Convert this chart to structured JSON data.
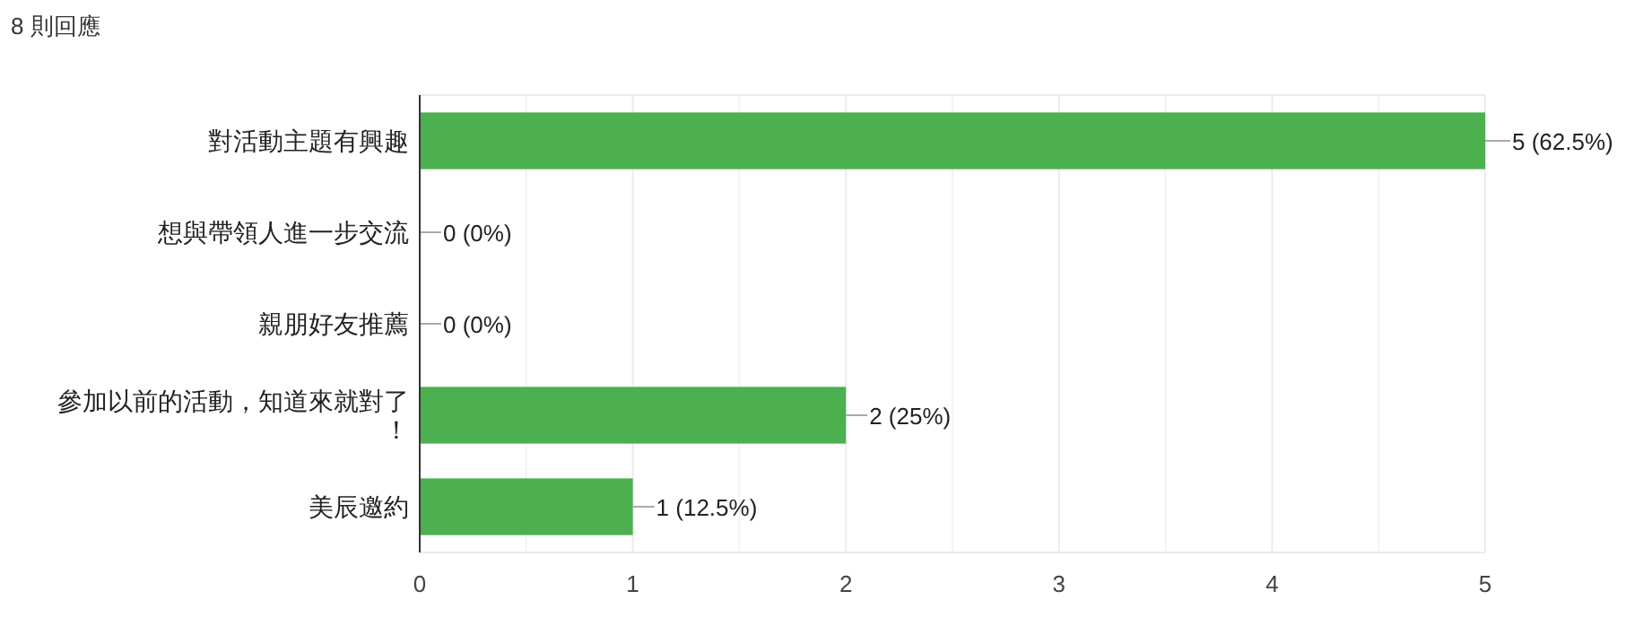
{
  "chart_data": {
    "type": "bar",
    "orientation": "horizontal",
    "title": "8 則回應",
    "categories": [
      "對活動主題有興趣",
      "想與帶領人進一步交流",
      "親朋好友推薦",
      "參加以前的活動，知道來就對了！",
      "美辰邀約"
    ],
    "values": [
      5,
      0,
      0,
      2,
      1
    ],
    "value_labels": [
      "5 (62.5%)",
      "0 (0%)",
      "0 (0%)",
      "2 (25%)",
      "1 (12.5%)"
    ],
    "color": "#4caf50",
    "xlim": [
      0,
      5
    ],
    "xticks": [
      0,
      {
        "value": 0.5,
        "label": null
      },
      1,
      {
        "value": 1.5,
        "label": null
      },
      2,
      {
        "value": 2.5,
        "label": null
      },
      3,
      {
        "value": 3.5,
        "label": null
      },
      4,
      {
        "value": 4.5,
        "label": null
      },
      5
    ],
    "grid": "x"
  }
}
